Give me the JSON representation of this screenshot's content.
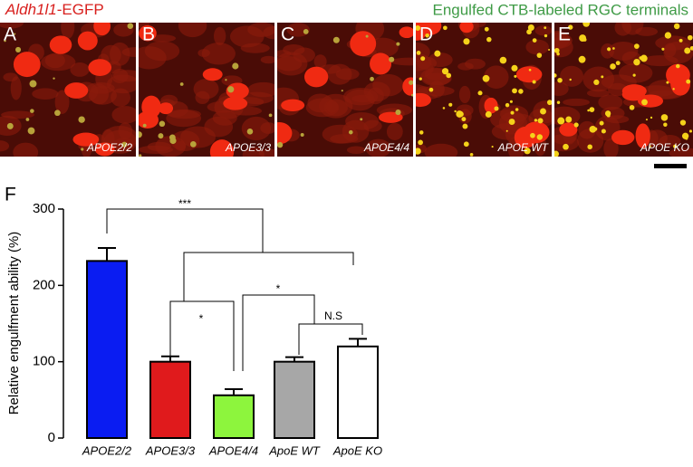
{
  "header": {
    "left_italic": "Aldh1l1",
    "left_plain": "-EGFP",
    "right": "Engulfed CTB-labeled RGC terminals"
  },
  "panels": [
    {
      "letter": "A",
      "caption": "APOE2/2"
    },
    {
      "letter": "B",
      "caption": "APOE3/3"
    },
    {
      "letter": "C",
      "caption": "APOE4/4"
    },
    {
      "letter": "D",
      "caption": "APOE WT"
    },
    {
      "letter": "E",
      "caption": "APOE KO"
    }
  ],
  "chart_data": {
    "type": "bar",
    "panel_letter": "F",
    "y_label": "Relative engulfment ability (%)",
    "categories": [
      "APOE2/2",
      "APOE3/3",
      "APOE4/4",
      "ApoE WT",
      "ApoE KO"
    ],
    "values": [
      232,
      100,
      56,
      100,
      120
    ],
    "errors": [
      17,
      7,
      8,
      6,
      10
    ],
    "colors": [
      "#0a1cf2",
      "#e01a1c",
      "#8df53d",
      "#a7a7a7",
      "#ffffff"
    ],
    "ylim": [
      0,
      300
    ],
    "yticks": [
      0,
      100,
      200,
      300
    ],
    "annotations": [
      "***",
      "*",
      "*",
      "N.S"
    ]
  }
}
